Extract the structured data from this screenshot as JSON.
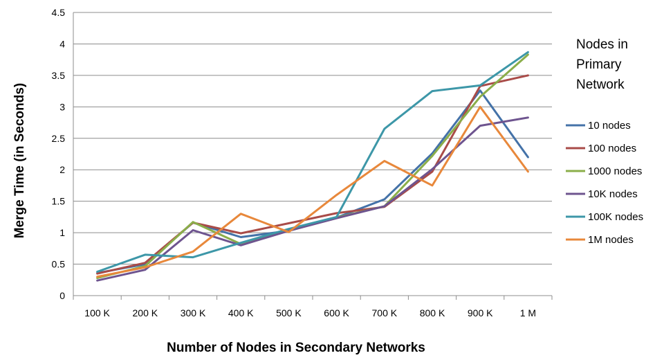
{
  "chart_data": {
    "type": "line",
    "title": "",
    "xlabel": "Number of Nodes in Secondary Networks",
    "ylabel": "Merge Time (in Seconds)",
    "categories": [
      "100 K",
      "200 K",
      "300 K",
      "400 K",
      "500 K",
      "600 K",
      "700 K",
      "800 K",
      "900 K",
      "1 M"
    ],
    "ylim": [
      0,
      4.5
    ],
    "yticks": [
      "0",
      "0.5",
      "1",
      "1.5",
      "2",
      "2.5",
      "3",
      "3.5",
      "4",
      "4.5"
    ],
    "grid": "horizontal",
    "legend": {
      "title_lines": [
        "Nodes in",
        "Primary",
        "Network"
      ],
      "placement": "right"
    },
    "series": [
      {
        "name": "10 nodes",
        "color": "#4472A8",
        "values": [
          0.36,
          0.5,
          1.16,
          0.93,
          1.03,
          1.24,
          1.53,
          2.26,
          3.26,
          2.2
        ]
      },
      {
        "name": "100 nodes",
        "color": "#A94B48",
        "values": [
          0.35,
          0.52,
          1.16,
          0.99,
          1.15,
          1.31,
          1.41,
          1.97,
          3.33,
          3.5
        ]
      },
      {
        "name": "1000 nodes",
        "color": "#8BAE4A",
        "values": [
          0.28,
          0.47,
          1.17,
          0.82,
          1.04,
          1.24,
          1.42,
          2.22,
          3.16,
          3.83
        ]
      },
      {
        "name": "10K nodes",
        "color": "#6E548F",
        "values": [
          0.24,
          0.41,
          1.04,
          0.8,
          1.03,
          1.23,
          1.42,
          2.01,
          2.7,
          2.83
        ]
      },
      {
        "name": "100K nodes",
        "color": "#3D97A8",
        "values": [
          0.38,
          0.65,
          0.61,
          0.84,
          1.06,
          1.25,
          2.65,
          3.25,
          3.34,
          3.87
        ]
      },
      {
        "name": "1M nodes",
        "color": "#E8883B",
        "values": [
          0.3,
          0.45,
          0.7,
          1.3,
          1.01,
          1.6,
          2.14,
          1.75,
          3.0,
          1.97
        ]
      }
    ]
  }
}
